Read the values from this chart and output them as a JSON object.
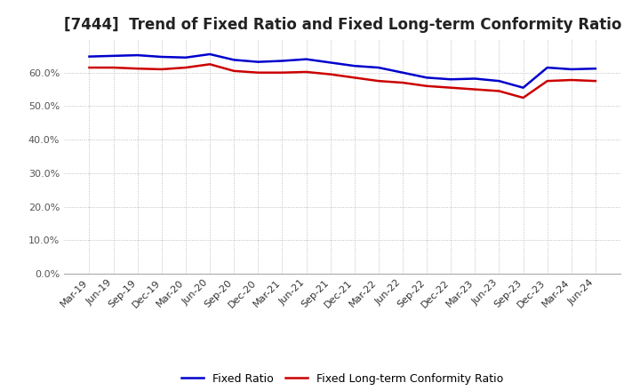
{
  "title": "[7444]  Trend of Fixed Ratio and Fixed Long-term Conformity Ratio",
  "x_labels": [
    "Mar-19",
    "Jun-19",
    "Sep-19",
    "Dec-19",
    "Mar-20",
    "Jun-20",
    "Sep-20",
    "Dec-20",
    "Mar-21",
    "Jun-21",
    "Sep-21",
    "Dec-21",
    "Mar-22",
    "Jun-22",
    "Sep-22",
    "Dec-22",
    "Mar-23",
    "Jun-23",
    "Sep-23",
    "Dec-23",
    "Mar-24",
    "Jun-24"
  ],
  "fixed_ratio": [
    64.8,
    65.0,
    65.2,
    64.7,
    64.5,
    65.5,
    63.8,
    63.2,
    63.5,
    64.0,
    63.0,
    62.0,
    61.5,
    60.0,
    58.5,
    58.0,
    58.2,
    57.5,
    55.5,
    61.5,
    61.0,
    61.2
  ],
  "fixed_lt_ratio": [
    61.5,
    61.5,
    61.2,
    61.0,
    61.5,
    62.5,
    60.5,
    60.0,
    60.0,
    60.2,
    59.5,
    58.5,
    57.5,
    57.0,
    56.0,
    55.5,
    55.0,
    54.5,
    52.5,
    57.5,
    57.8,
    57.5
  ],
  "fixed_ratio_color": "#0000cc",
  "fixed_lt_ratio_color": "#cc0000",
  "ylim_min": 0,
  "ylim_max": 70,
  "yticks": [
    0.0,
    10.0,
    20.0,
    30.0,
    40.0,
    50.0,
    60.0
  ],
  "background_color": "#ffffff",
  "grid_color": "#b0b0b0",
  "legend_fixed": "Fixed Ratio",
  "legend_lt": "Fixed Long-term Conformity Ratio",
  "title_fontsize": 12,
  "axis_fontsize": 8,
  "ytick_color": "#555555",
  "legend_fontsize": 9
}
